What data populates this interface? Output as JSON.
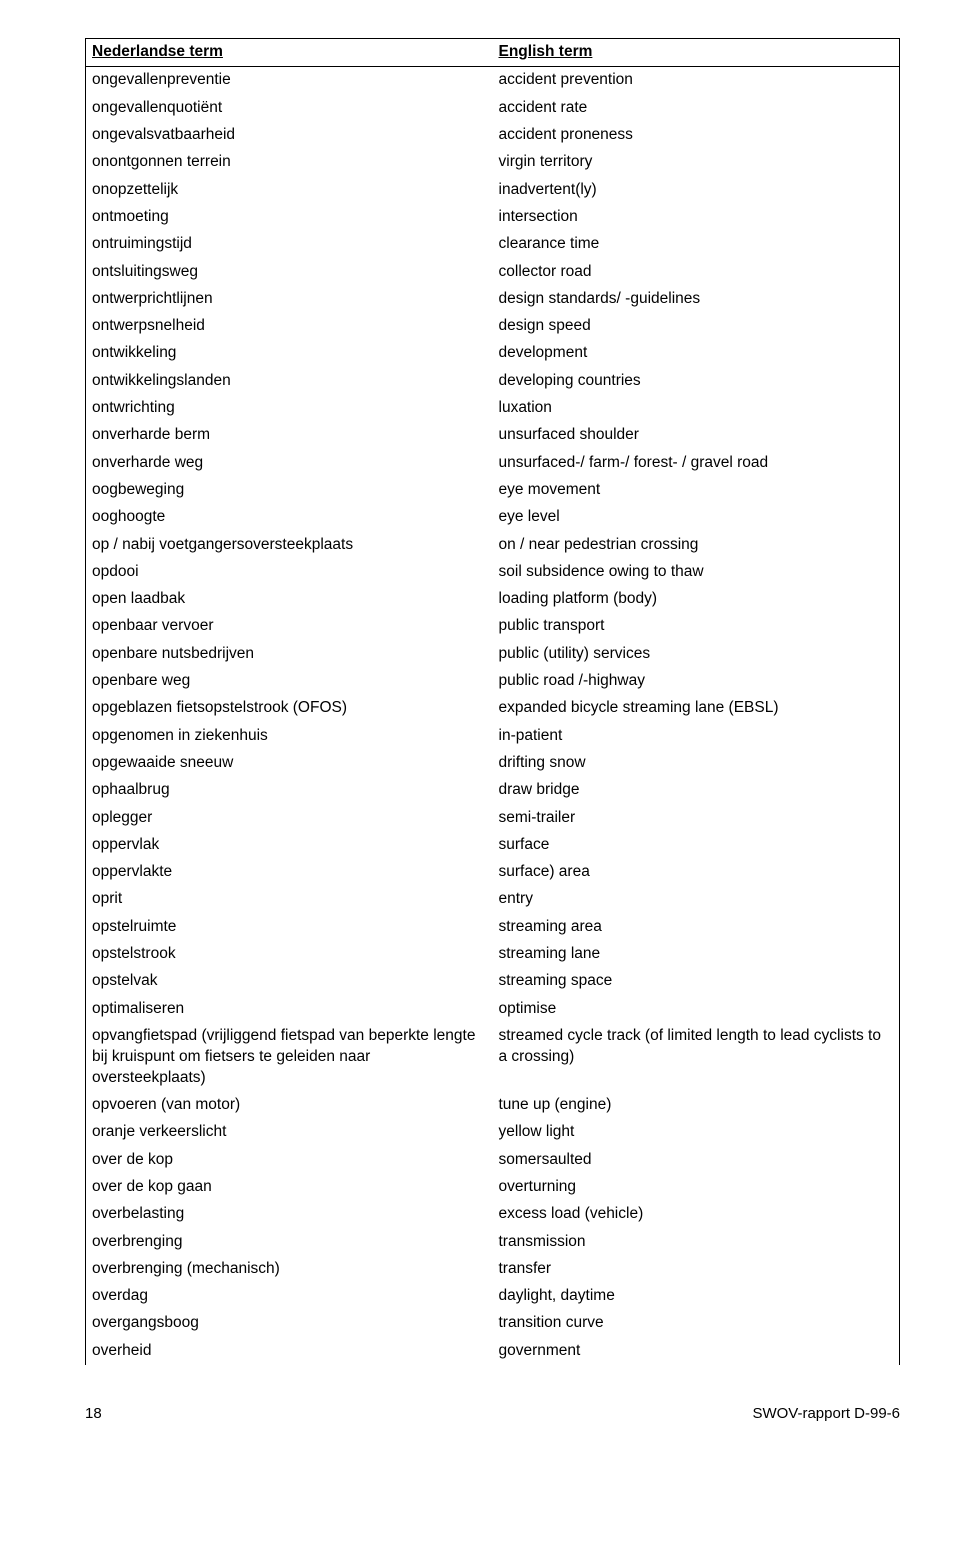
{
  "header": {
    "left": "Nederlandse term",
    "right": "English term"
  },
  "rows": [
    [
      "ongevallenpreventie",
      "accident prevention"
    ],
    [
      "ongevallenquotiënt",
      "accident rate"
    ],
    [
      "ongevalsvatbaarheid",
      "accident proneness"
    ],
    [
      "onontgonnen terrein",
      "virgin territory"
    ],
    [
      "onopzettelijk",
      "inadvertent(ly)"
    ],
    [
      "ontmoeting",
      "intersection"
    ],
    [
      "ontruimingstijd",
      "clearance time"
    ],
    [
      "ontsluitingsweg",
      "collector road"
    ],
    [
      "ontwerprichtlijnen",
      "design standards/ -guidelines"
    ],
    [
      "ontwerpsnelheid",
      "design speed"
    ],
    [
      "ontwikkeling",
      "development"
    ],
    [
      "ontwikkelingslanden",
      "developing countries"
    ],
    [
      "ontwrichting",
      "luxation"
    ],
    [
      "onverharde berm",
      "unsurfaced shoulder"
    ],
    [
      "onverharde weg",
      "unsurfaced-/ farm-/ forest- / gravel road"
    ],
    [
      "oogbeweging",
      "eye movement"
    ],
    [
      "ooghoogte",
      "eye level"
    ],
    [
      "op / nabij voetgangersoversteekplaats",
      "on / near pedestrian crossing"
    ],
    [
      "opdooi",
      "soil subsidence owing to thaw"
    ],
    [
      "open laadbak",
      "loading platform (body)"
    ],
    [
      "openbaar vervoer",
      "public transport"
    ],
    [
      "openbare nutsbedrijven",
      "public (utility) services"
    ],
    [
      "openbare weg",
      "public road /-highway"
    ],
    [
      "opgeblazen fietsopstelstrook (OFOS)",
      "expanded bicycle streaming lane (EBSL)"
    ],
    [
      "opgenomen in ziekenhuis",
      "in-patient"
    ],
    [
      "opgewaaide sneeuw",
      "drifting snow"
    ],
    [
      "ophaalbrug",
      "draw bridge"
    ],
    [
      "oplegger",
      "semi-trailer"
    ],
    [
      "oppervlak",
      "surface"
    ],
    [
      "oppervlakte",
      "surface) area"
    ],
    [
      "oprit",
      "entry"
    ],
    [
      "opstelruimte",
      "streaming area"
    ],
    [
      "opstelstrook",
      "streaming lane"
    ],
    [
      "opstelvak",
      "streaming space"
    ],
    [
      "optimaliseren",
      "optimise"
    ],
    [
      "opvangfietspad (vrijliggend fietspad van beperkte lengte bij kruispunt om fietsers te geleiden naar oversteekplaats)",
      "streamed cycle track (of limited length to lead cyclists to a crossing)"
    ],
    [
      "opvoeren (van motor)",
      "tune up (engine)"
    ],
    [
      "oranje verkeerslicht",
      "yellow light"
    ],
    [
      "over de kop",
      "somersaulted"
    ],
    [
      "over de kop gaan",
      "overturning"
    ],
    [
      "overbelasting",
      "excess load (vehicle)"
    ],
    [
      "overbrenging",
      "transmission"
    ],
    [
      "overbrenging (mechanisch)",
      "transfer"
    ],
    [
      "overdag",
      "daylight, daytime"
    ],
    [
      "overgangsboog",
      "transition curve"
    ],
    [
      "overheid",
      "government"
    ]
  ],
  "footer": {
    "pageNumber": "18",
    "reportId": "SWOV-rapport D-99-6"
  }
}
